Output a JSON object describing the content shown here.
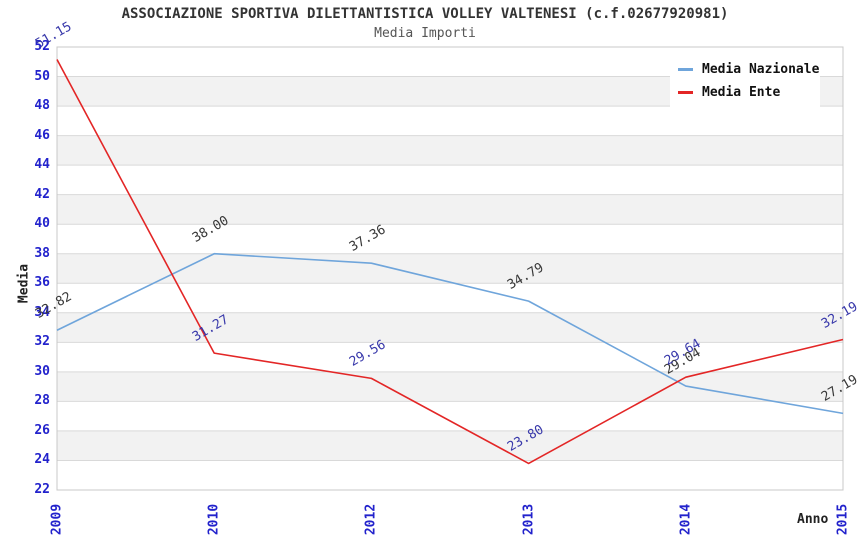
{
  "chart_data": {
    "type": "line",
    "title": "ASSOCIAZIONE SPORTIVA DILETTANTISTICA VOLLEY VALTENESI (c.f.02677920981)",
    "subtitle": "Media Importi",
    "xlabel": "Anno",
    "ylabel": "Media",
    "categories": [
      "2009",
      "2010",
      "2012",
      "2013",
      "2014",
      "2015"
    ],
    "series": [
      {
        "name": "Media Nazionale",
        "color": "#6fa5db",
        "label_color": "#383838",
        "values": [
          32.82,
          38.0,
          37.36,
          34.79,
          29.04,
          27.19
        ]
      },
      {
        "name": "Media Ente",
        "color": "#e32626",
        "label_color": "#3838aa",
        "values": [
          51.15,
          31.27,
          29.56,
          23.8,
          29.64,
          32.19
        ]
      }
    ],
    "ylim": [
      22,
      52
    ],
    "ytick_step": 2,
    "grid": "horizontal",
    "legend_position": "top-right",
    "colors": {
      "tick_label": "#2222cc",
      "grid_line": "#d9d9d9",
      "band_fill": "#f2f2f2",
      "plot_border": "#c8c8c8"
    }
  }
}
